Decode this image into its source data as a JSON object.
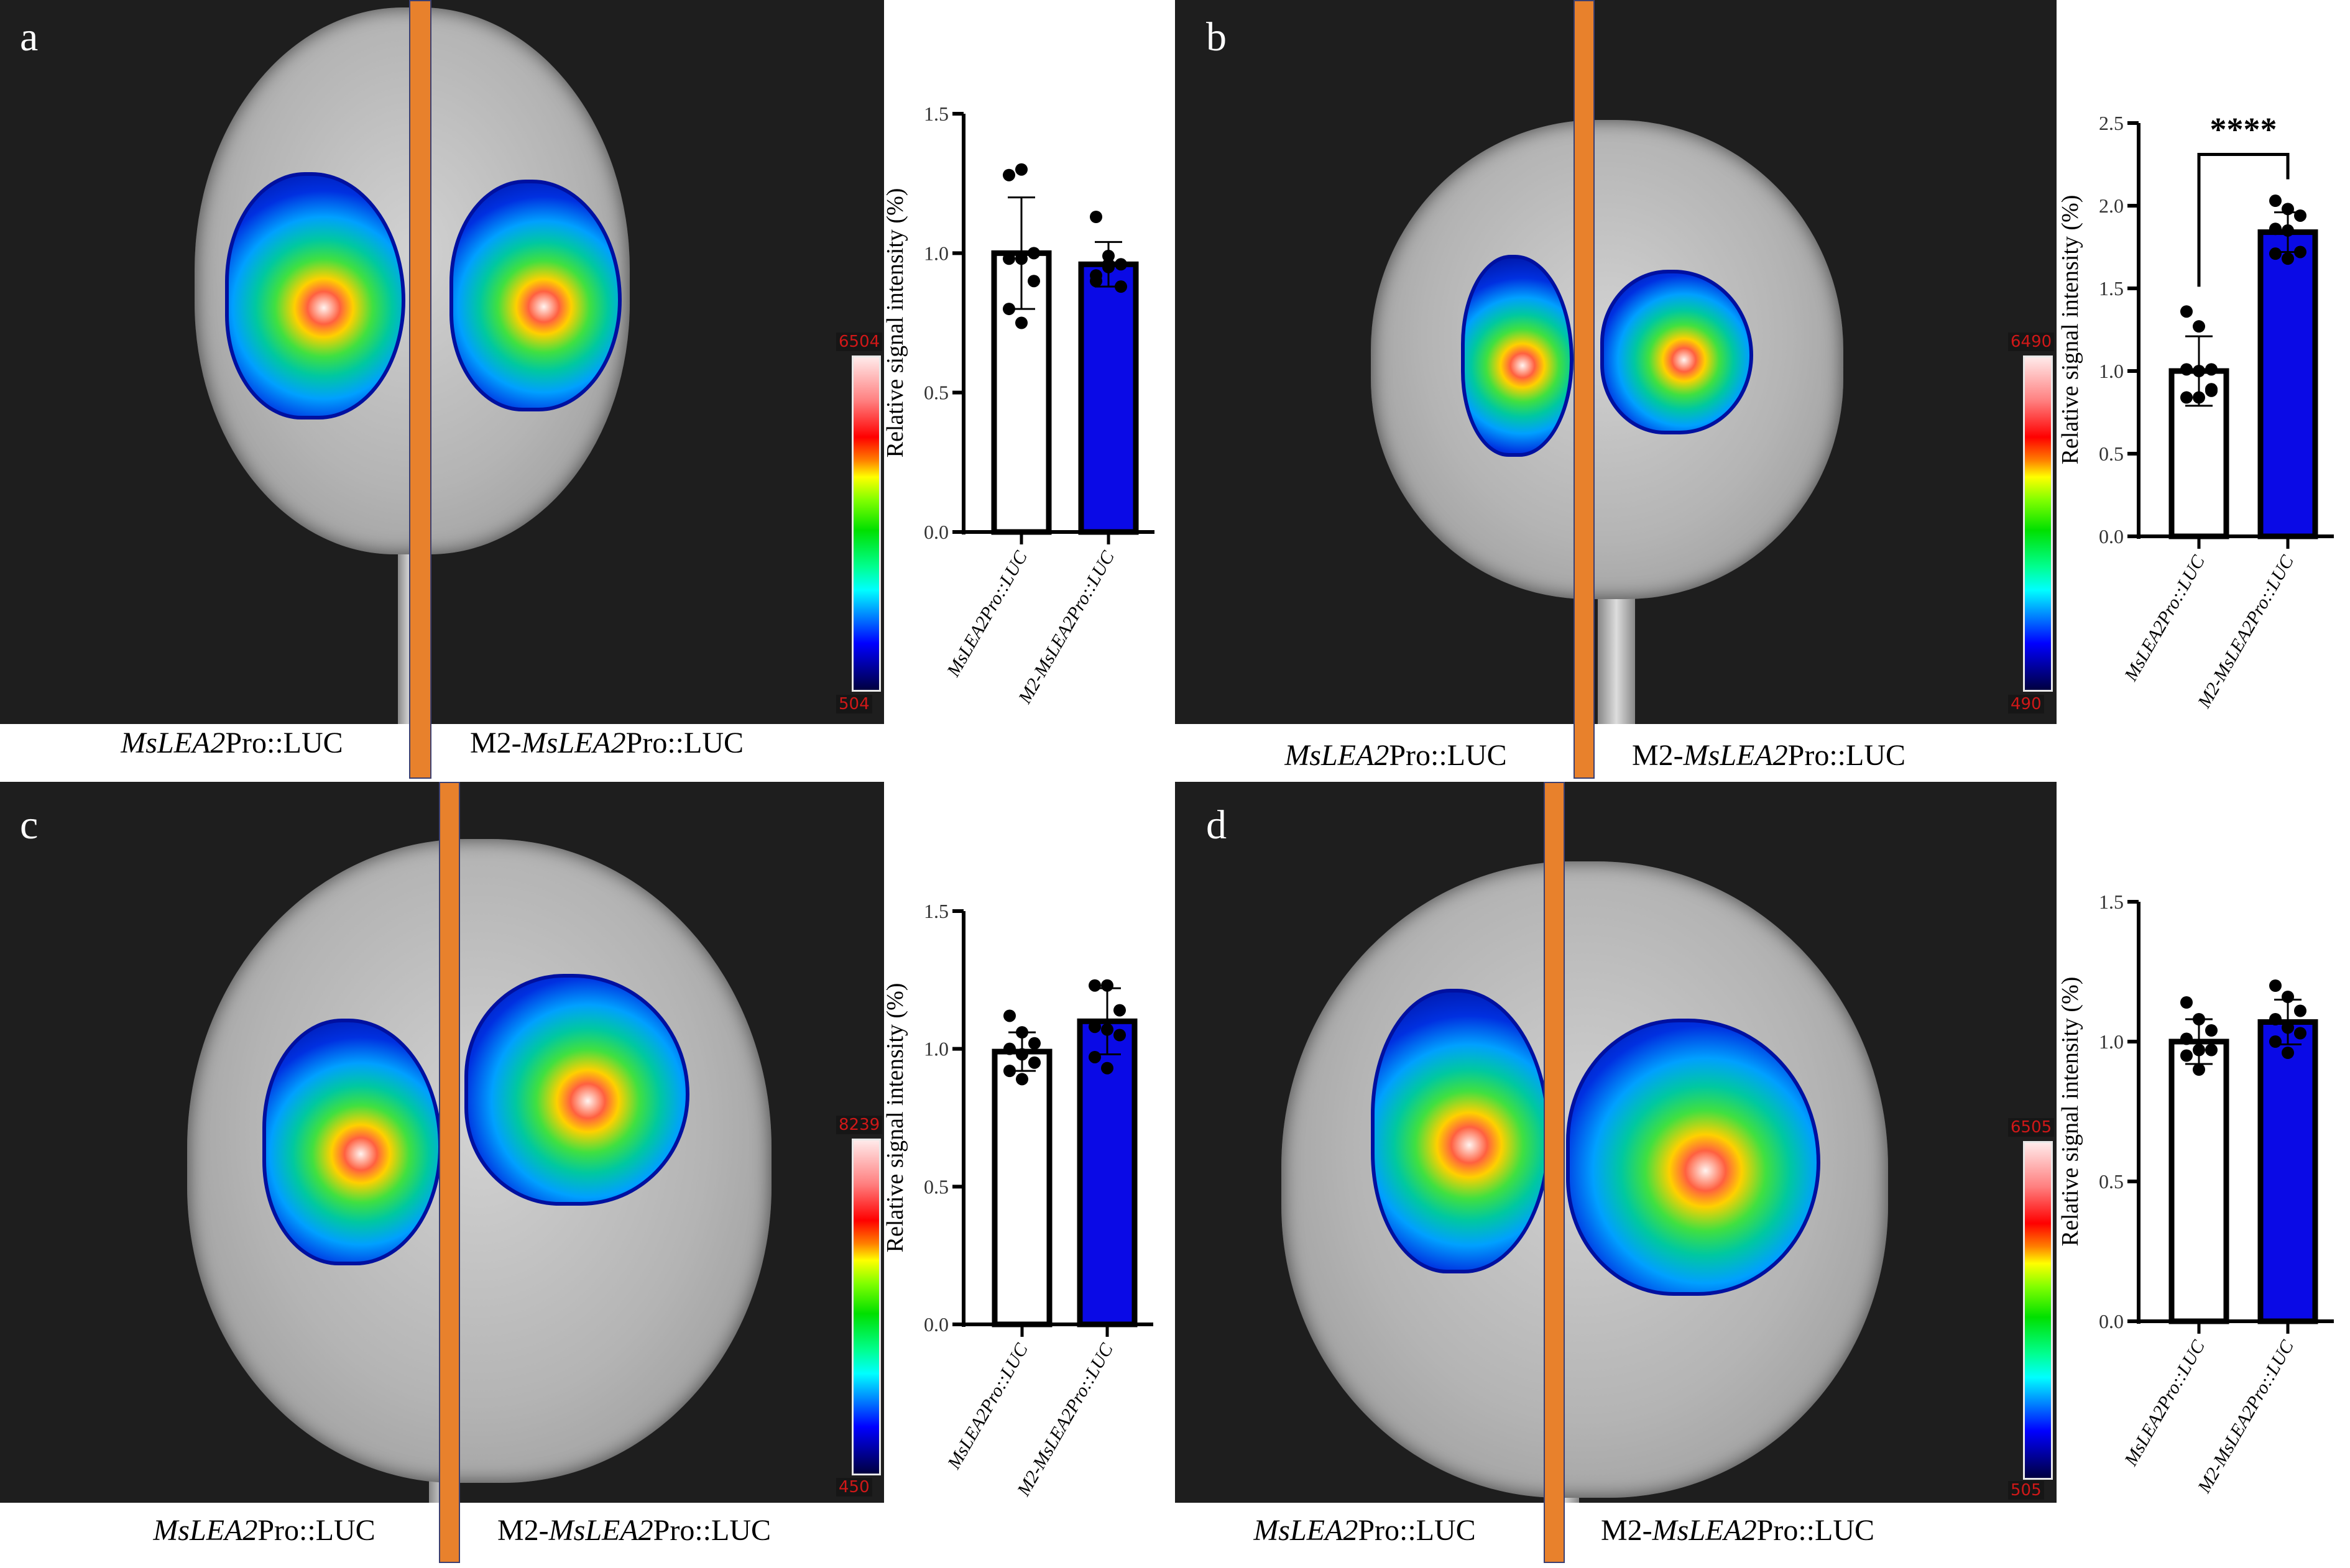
{
  "panels": [
    {
      "letter": "a",
      "left_caption_italic": "MsLEA2",
      "left_caption_rest": "Pro::LUC",
      "right_caption_prefix": "M2-",
      "right_caption_italic": "MsLEA2",
      "right_caption_rest": "Pro::LUC",
      "colorbar_max": "6504",
      "colorbar_min": "504"
    },
    {
      "letter": "b",
      "left_caption_italic": "MsLEA2",
      "left_caption_rest": "Pro::LUC",
      "right_caption_prefix": "M2-",
      "right_caption_italic": "MsLEA2",
      "right_caption_rest": "Pro::LUC",
      "colorbar_max": "6490",
      "colorbar_min": "490"
    },
    {
      "letter": "c",
      "left_caption_italic": "MsLEA2",
      "left_caption_rest": "Pro::LUC",
      "right_caption_prefix": "M2-",
      "right_caption_italic": "MsLEA2",
      "right_caption_rest": "Pro::LUC",
      "colorbar_max": "8239",
      "colorbar_min": "450"
    },
    {
      "letter": "d",
      "left_caption_italic": "MsLEA2",
      "left_caption_rest": "Pro::LUC",
      "right_caption_prefix": "M2-",
      "right_caption_italic": "MsLEA2",
      "right_caption_rest": "Pro::LUC",
      "colorbar_max": "6505",
      "colorbar_min": "505"
    }
  ],
  "colors": {
    "control_bar": "#ffffff",
    "mutant_bar": "#0a0ae6",
    "divider": "#e8812c",
    "axis": "#000000"
  },
  "chart_data": [
    {
      "panel": "a",
      "type": "bar",
      "ylabel": "Relative signal intensity (%)",
      "ylim": [
        0,
        1.5
      ],
      "yticks": [
        "0.0",
        "0.5",
        "1.0",
        "1.5"
      ],
      "categories": [
        "MsLEA2Pro::LUC",
        "M2-MsLEA2Pro::LUC"
      ],
      "values": [
        1.0,
        0.96
      ],
      "sd": [
        0.2,
        0.08
      ],
      "points": [
        [
          1.28,
          1.3,
          1.0,
          0.98,
          0.98,
          0.9,
          0.8,
          0.75
        ],
        [
          1.13,
          0.99,
          0.96,
          0.92,
          0.96,
          0.88,
          0.9,
          0.95
        ]
      ],
      "significance": null
    },
    {
      "panel": "b",
      "type": "bar",
      "ylabel": "Relative signal intensity (%)",
      "ylim": [
        0,
        2.5
      ],
      "yticks": [
        "0.0",
        "0.5",
        "1.0",
        "1.5",
        "2.0",
        "2.5"
      ],
      "categories": [
        "MsLEA2Pro::LUC",
        "M2-MsLEA2Pro::LUC"
      ],
      "values": [
        1.0,
        1.84
      ],
      "sd": [
        0.21,
        0.12
      ],
      "points": [
        [
          1.36,
          1.27,
          1.01,
          1.01,
          1.0,
          0.88,
          0.84,
          0.84,
          0.89
        ],
        [
          2.03,
          1.98,
          1.94,
          1.86,
          1.85,
          1.72,
          1.71,
          1.68
        ]
      ],
      "significance": {
        "label": "****",
        "y": 2.31
      }
    },
    {
      "panel": "c",
      "type": "bar",
      "ylabel": "Relative signal intensity (%)",
      "ylim": [
        0,
        1.5
      ],
      "yticks": [
        "0.0",
        "0.5",
        "1.0",
        "1.5"
      ],
      "categories": [
        "MsLEA2Pro::LUC",
        "M2-MsLEA2Pro::LUC"
      ],
      "values": [
        0.99,
        1.1
      ],
      "sd": [
        0.07,
        0.12
      ],
      "points": [
        [
          1.12,
          1.06,
          1.02,
          1.0,
          0.98,
          0.95,
          0.92,
          0.89
        ],
        [
          1.23,
          1.23,
          1.14,
          1.08,
          1.07,
          1.05,
          0.97,
          0.93
        ]
      ],
      "significance": null
    },
    {
      "panel": "d",
      "type": "bar",
      "ylabel": "Relative signal intensity (%)",
      "ylim": [
        0,
        1.5
      ],
      "yticks": [
        "0.0",
        "0.5",
        "1.0",
        "1.5"
      ],
      "categories": [
        "MsLEA2Pro::LUC",
        "M2-MsLEA2Pro::LUC"
      ],
      "values": [
        1.0,
        1.07
      ],
      "sd": [
        0.08,
        0.08
      ],
      "points": [
        [
          1.14,
          1.08,
          1.04,
          1.01,
          0.97,
          0.97,
          0.95,
          0.9
        ],
        [
          1.2,
          1.16,
          1.11,
          1.08,
          1.05,
          1.03,
          1.0,
          0.96
        ]
      ],
      "significance": null
    }
  ]
}
